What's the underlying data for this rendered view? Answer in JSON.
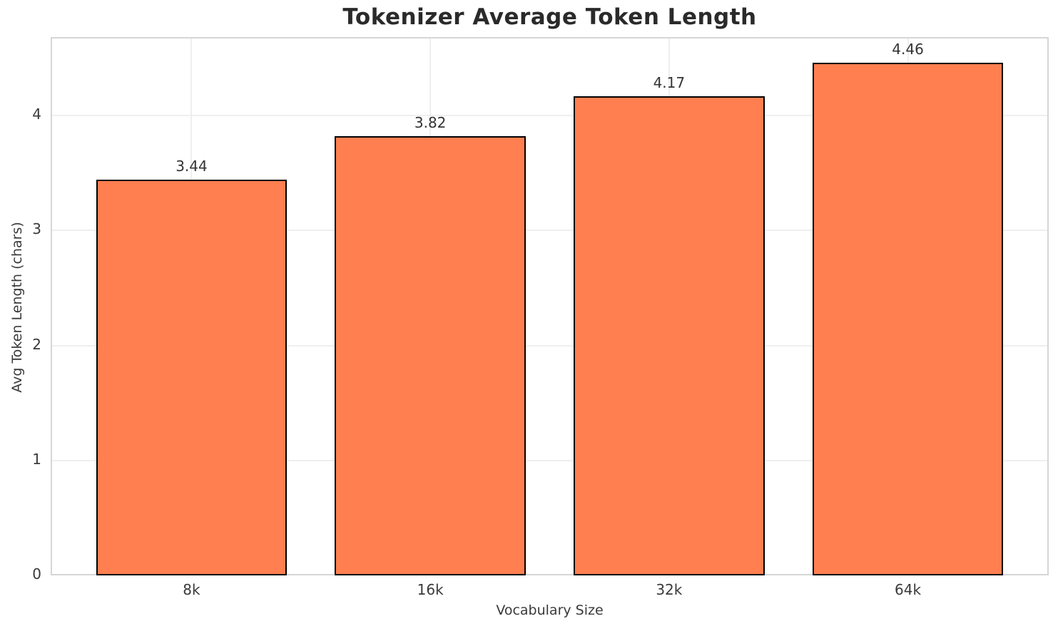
{
  "chart_data": {
    "type": "bar",
    "title": "Tokenizer Average Token Length",
    "xlabel": "Vocabulary Size",
    "ylabel": "Avg Token Length (chars)",
    "categories": [
      "8k",
      "16k",
      "32k",
      "64k"
    ],
    "values": [
      3.44,
      3.82,
      4.17,
      4.46
    ],
    "bar_labels": [
      "3.44",
      "3.82",
      "4.17",
      "4.46"
    ],
    "yticks": [
      0,
      1,
      2,
      3,
      4
    ],
    "ylim": [
      0,
      4.683
    ],
    "xlim": [
      -0.59,
      3.59
    ],
    "bar_width_units": 0.8,
    "grid": true,
    "legend": "none",
    "colors": {
      "bar_fill": "#FF7F50",
      "bar_edge": "#000000",
      "gridline": "#efefef",
      "spine": "#d6d6d6",
      "title_text": "#2a2a2a",
      "tick_text": "#3a3a3a"
    }
  }
}
